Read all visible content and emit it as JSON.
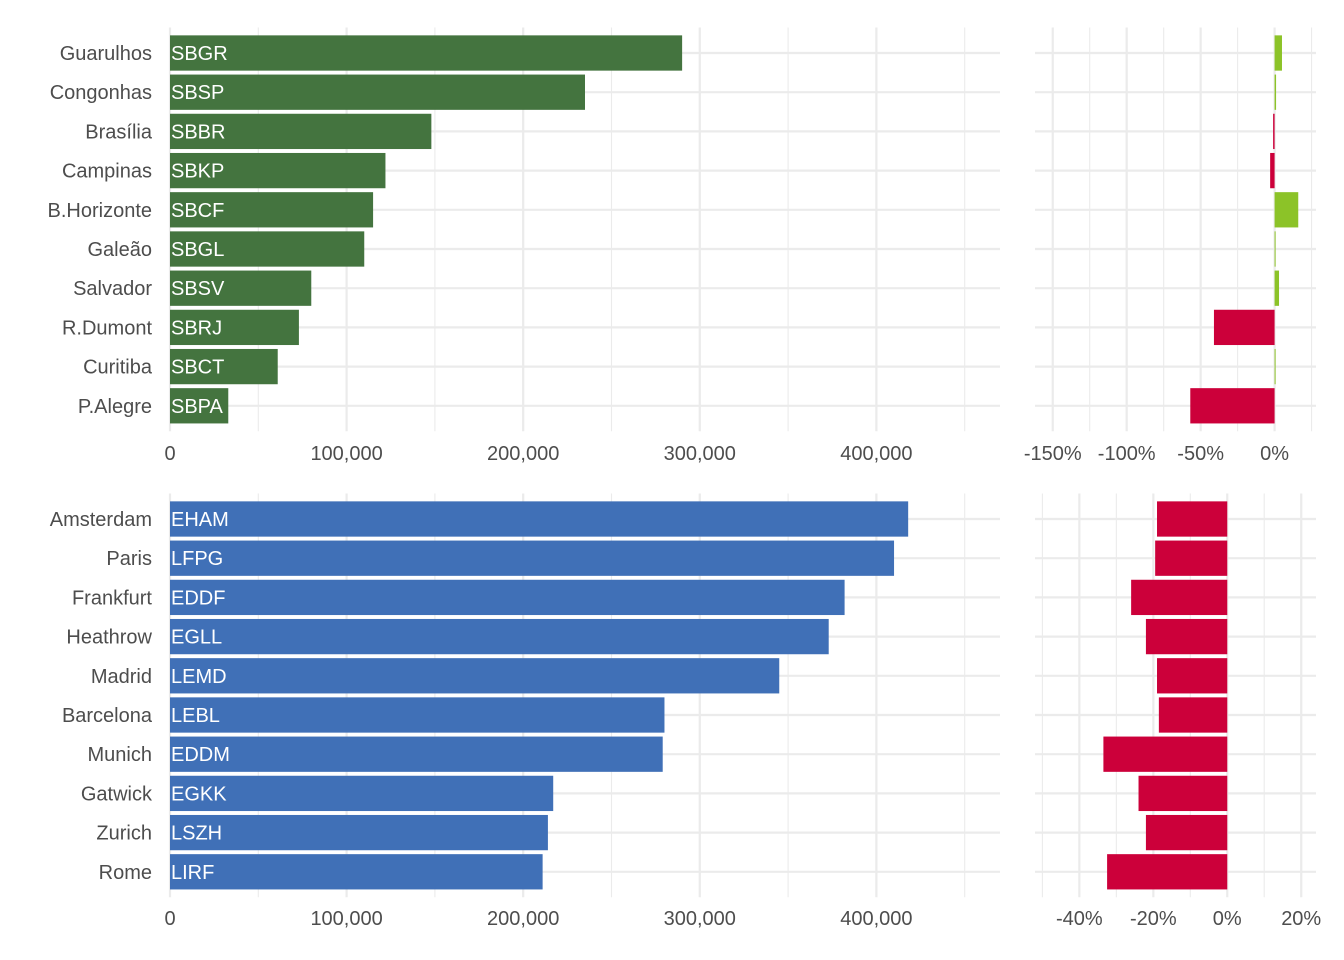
{
  "chart_data": [
    {
      "type": "bar",
      "orientation": "horizontal",
      "categories": [
        "Guarulhos",
        "Congonhas",
        "Brasília",
        "Campinas",
        "B.Horizonte",
        "Galeão",
        "Salvador",
        "R.Dumont",
        "Curitiba",
        "P.Alegre"
      ],
      "codes": [
        "SBGR",
        "SBSP",
        "SBBR",
        "SBKP",
        "SBCF",
        "SBGL",
        "SBSV",
        "SBRJ",
        "SBCT",
        "SBPA"
      ],
      "values": [
        290000,
        235000,
        148000,
        122000,
        115000,
        110000,
        80000,
        73000,
        61000,
        33000
      ],
      "xlim": [
        0,
        470000
      ],
      "xticks": [
        0,
        100000,
        200000,
        300000,
        400000
      ],
      "xtick_labels": [
        "0",
        "100,000",
        "200,000",
        "300,000",
        "400,000"
      ],
      "bar_color": "#44743f",
      "grid": true
    },
    {
      "type": "bar",
      "orientation": "horizontal",
      "categories": [
        "Guarulhos",
        "Congonhas",
        "Brasília",
        "Campinas",
        "B.Horizonte",
        "Galeão",
        "Salvador",
        "R.Dumont",
        "Curitiba",
        "P.Alegre"
      ],
      "values": [
        5,
        1,
        -1,
        -3,
        16,
        0,
        3,
        -41,
        0.5,
        -57
      ],
      "unit": "%",
      "xlim": [
        -162,
        28
      ],
      "xticks": [
        -150,
        -100,
        -50,
        0
      ],
      "xtick_labels": [
        "-150%",
        "-100%",
        "-50%",
        "0%"
      ],
      "positive_color": "#8cc328",
      "negative_color": "#cc003a",
      "grid": true
    },
    {
      "type": "bar",
      "orientation": "horizontal",
      "categories": [
        "Amsterdam",
        "Paris",
        "Frankfurt",
        "Heathrow",
        "Madrid",
        "Barcelona",
        "Munich",
        "Gatwick",
        "Zurich",
        "Rome"
      ],
      "codes": [
        "EHAM",
        "LFPG",
        "EDDF",
        "EGLL",
        "LEMD",
        "LEBL",
        "EDDM",
        "EGKK",
        "LSZH",
        "LIRF"
      ],
      "values": [
        418000,
        410000,
        382000,
        373000,
        345000,
        280000,
        279000,
        217000,
        214000,
        211000
      ],
      "xlim": [
        0,
        470000
      ],
      "xticks": [
        0,
        100000,
        200000,
        300000,
        400000
      ],
      "xtick_labels": [
        "0",
        "100,000",
        "200,000",
        "300,000",
        "400,000"
      ],
      "bar_color": "#4070b7",
      "grid": true
    },
    {
      "type": "bar",
      "orientation": "horizontal",
      "categories": [
        "Amsterdam",
        "Paris",
        "Frankfurt",
        "Heathrow",
        "Madrid",
        "Barcelona",
        "Munich",
        "Gatwick",
        "Zurich",
        "Rome"
      ],
      "values": [
        -19,
        -19.5,
        -26,
        -22,
        -19,
        -18.5,
        -33.5,
        -24,
        -22,
        -32.5
      ],
      "unit": "%",
      "xlim": [
        -52,
        24
      ],
      "xticks": [
        -40,
        -20,
        0,
        20
      ],
      "xtick_labels": [
        "-40%",
        "-20%",
        "0%",
        "20%"
      ],
      "positive_color": "#8cc328",
      "negative_color": "#cc003a",
      "grid": true
    }
  ]
}
